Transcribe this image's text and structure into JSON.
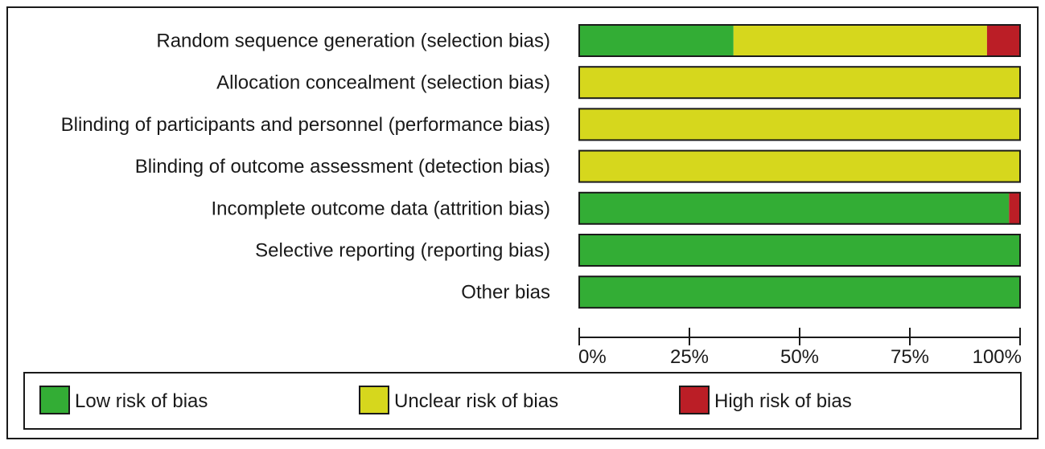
{
  "chart_data": {
    "type": "bar",
    "orientation": "horizontal",
    "stacked": true,
    "title": "",
    "xlabel": "",
    "ylabel": "",
    "xlim": [
      0,
      100
    ],
    "grid": false,
    "legend_position": "bottom",
    "categories": [
      "Random sequence generation (selection bias)",
      "Allocation concealment (selection bias)",
      "Blinding of participants and personnel (performance bias)",
      "Blinding of outcome assessment (detection bias)",
      "Incomplete outcome data (attrition bias)",
      "Selective reporting (reporting bias)",
      "Other bias"
    ],
    "series": [
      {
        "name": "Low risk of bias",
        "color": "#33ad35",
        "values": [
          35,
          0,
          0,
          0,
          97.5,
          100,
          100
        ]
      },
      {
        "name": "Unclear risk of bias",
        "color": "#d6d71d",
        "values": [
          57.5,
          100,
          100,
          100,
          0,
          0,
          0
        ]
      },
      {
        "name": "High risk of bias",
        "color": "#bb1e26",
        "values": [
          7.5,
          0,
          0,
          0,
          2.5,
          0,
          0
        ]
      }
    ],
    "ticks": [
      0,
      25,
      50,
      75,
      100
    ],
    "tick_labels": [
      "0%",
      "25%",
      "50%",
      "75%",
      "100%"
    ]
  }
}
